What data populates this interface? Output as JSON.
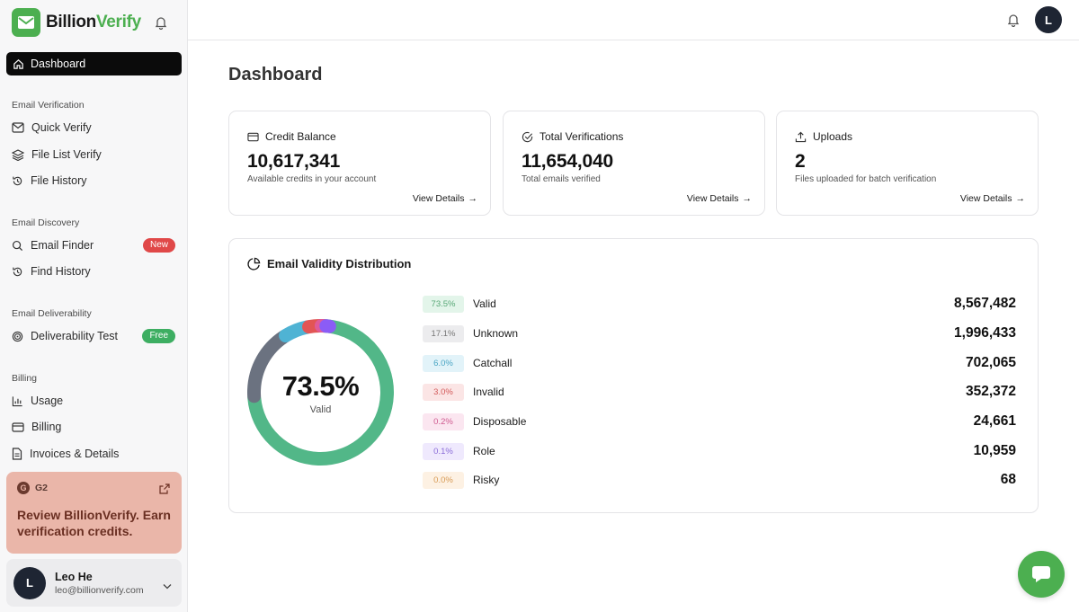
{
  "brand": {
    "name_part1": "Billion",
    "name_part2": "Verify",
    "accent": "#4caf50"
  },
  "sidebar": {
    "active_item": "Dashboard",
    "sections": [
      {
        "label": "Email Verification",
        "items": [
          {
            "label": "Quick Verify",
            "icon": "mail-check-icon"
          },
          {
            "label": "File List Verify",
            "icon": "layers-icon"
          },
          {
            "label": "File History",
            "icon": "history-icon"
          }
        ]
      },
      {
        "label": "Email Discovery",
        "items": [
          {
            "label": "Email Finder",
            "icon": "search-icon",
            "badge": "New"
          },
          {
            "label": "Find History",
            "icon": "history-icon"
          }
        ]
      },
      {
        "label": "Email Deliverability",
        "items": [
          {
            "label": "Deliverability Test",
            "icon": "target-icon",
            "badge": "Free"
          }
        ]
      },
      {
        "label": "Billing",
        "items": [
          {
            "label": "Usage",
            "icon": "bar-chart-icon"
          },
          {
            "label": "Billing",
            "icon": "credit-card-icon"
          },
          {
            "label": "Invoices & Details",
            "icon": "file-text-icon"
          }
        ]
      }
    ],
    "review": {
      "logo": "G2",
      "title": "Review BillionVerify. Earn verification credits."
    },
    "user": {
      "initial": "L",
      "name": "Leo He",
      "email": "leo@billionverify.com"
    }
  },
  "topbar": {
    "avatar_initial": "L"
  },
  "main": {
    "title": "Dashboard",
    "cards": [
      {
        "title": "Credit Balance",
        "value": "10,617,341",
        "subtitle": "Available credits in your account",
        "link": "View Details"
      },
      {
        "title": "Total Verifications",
        "value": "11,654,040",
        "subtitle": "Total emails verified",
        "link": "View Details"
      },
      {
        "title": "Uploads",
        "value": "2",
        "subtitle": "Files uploaded for batch verification",
        "link": "View Details"
      }
    ],
    "distribution": {
      "title": "Email Validity Distribution",
      "center_value": "73.5%",
      "center_label": "Valid",
      "rows": [
        {
          "pct": "73.5%",
          "label": "Valid",
          "value": "8,567,482",
          "fraction": 0.735,
          "color": "#52b788",
          "bg": "#e3f5ea",
          "fg": "#58a877"
        },
        {
          "pct": "17.1%",
          "label": "Unknown",
          "value": "1,996,433",
          "fraction": 0.171,
          "color": "#6b7280",
          "bg": "#ececee",
          "fg": "#777"
        },
        {
          "pct": "6.0%",
          "label": "Catchall",
          "value": "702,065",
          "fraction": 0.06,
          "color": "#4fb3d4",
          "bg": "#e2f3f9",
          "fg": "#4aa5c4"
        },
        {
          "pct": "3.0%",
          "label": "Invalid",
          "value": "352,372",
          "fraction": 0.03,
          "color": "#e25555",
          "bg": "#fbe5e5",
          "fg": "#d35a5a"
        },
        {
          "pct": "0.2%",
          "label": "Disposable",
          "value": "24,661",
          "fraction": 0.002,
          "color": "#e05a9a",
          "bg": "#fbe6f0",
          "fg": "#cf5a8f"
        },
        {
          "pct": "0.1%",
          "label": "Role",
          "value": "10,959",
          "fraction": 0.001,
          "color": "#8b5cf6",
          "bg": "#efe9fd",
          "fg": "#8a6cd8"
        },
        {
          "pct": "0.0%",
          "label": "Risky",
          "value": "68",
          "fraction": 0.0,
          "color": "#f0a64a",
          "bg": "#fdf1e3",
          "fg": "#d79a55"
        }
      ]
    }
  }
}
